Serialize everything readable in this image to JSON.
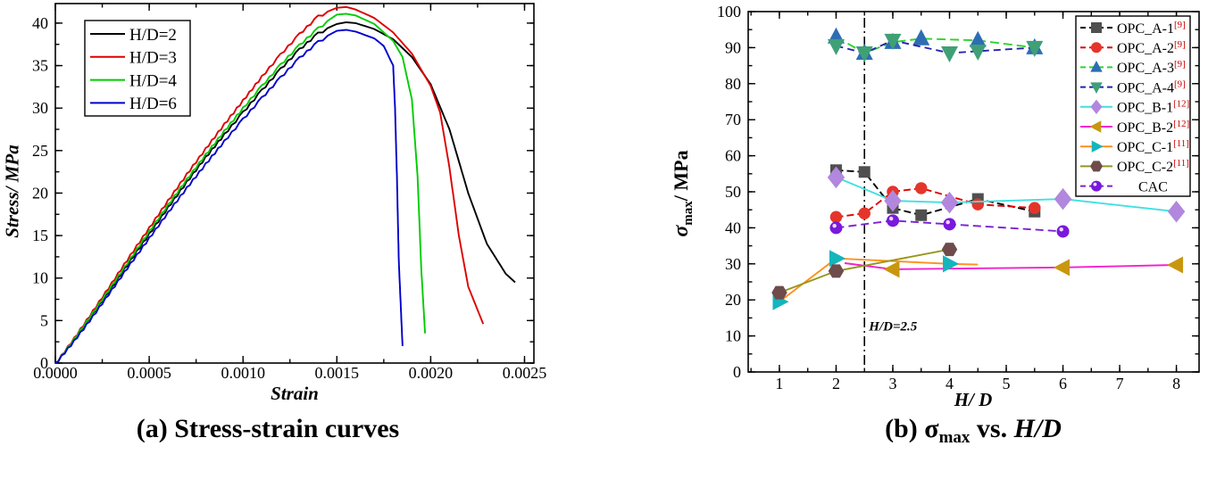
{
  "captions": {
    "a": "(a) Stress-strain curves",
    "b_prefix": "(b) ",
    "b_sigma": "σ",
    "b_sub": "max",
    "b_mid": " vs. ",
    "b_italic": "H/D"
  },
  "chart_data": [
    {
      "id": "stress-strain",
      "type": "line",
      "xlabel": "Strain",
      "ylabel": "Stress/ MPa",
      "xlim": [
        0,
        0.00255
      ],
      "ylim": [
        0,
        42.3
      ],
      "xticks": [
        0.0,
        0.0005,
        0.001,
        0.0015,
        0.002,
        0.0025
      ],
      "xtick_labels": [
        "0.0000",
        "0.0005",
        "0.0010",
        "0.0015",
        "0.0020",
        "0.0025"
      ],
      "x_minor_step": 0.00025,
      "yticks": [
        0,
        5,
        10,
        15,
        20,
        25,
        30,
        35,
        40
      ],
      "y_minor_step": 2.5,
      "grid": false,
      "legend_position": "top-left",
      "series": [
        {
          "name": "H/D=2",
          "color": "#000000",
          "ripple": true,
          "x": [
            0,
            0.0001,
            0.0002,
            0.0003,
            0.0004,
            0.0005,
            0.0006,
            0.0007,
            0.0008,
            0.0009,
            0.001,
            0.0011,
            0.0012,
            0.0013,
            0.0014,
            0.0015,
            0.00155,
            0.0016,
            0.0017,
            0.0018,
            0.0019,
            0.002,
            0.0021,
            0.0022,
            0.0023,
            0.0024,
            0.00245
          ],
          "y": [
            0,
            2.9,
            5.9,
            9.0,
            12.2,
            15.3,
            18.4,
            21.4,
            24.3,
            27.0,
            29.6,
            32.2,
            34.7,
            37.0,
            38.9,
            39.9,
            40.1,
            40.0,
            39.3,
            38.1,
            36.0,
            32.8,
            27.5,
            20.0,
            14.0,
            10.5,
            9.5
          ]
        },
        {
          "name": "H/D=3",
          "color": "#dd0000",
          "ripple": true,
          "x": [
            0,
            0.0001,
            0.0002,
            0.0003,
            0.0004,
            0.0005,
            0.0006,
            0.0007,
            0.0008,
            0.0009,
            0.001,
            0.0011,
            0.0012,
            0.0013,
            0.0014,
            0.0015,
            0.00155,
            0.0016,
            0.0017,
            0.0018,
            0.0019,
            0.002,
            0.00205,
            0.0021,
            0.00215,
            0.0022,
            0.00228
          ],
          "y": [
            0,
            3.0,
            6.2,
            9.5,
            12.8,
            16.0,
            19.2,
            22.3,
            25.3,
            28.2,
            31.0,
            33.8,
            36.4,
            38.8,
            40.9,
            41.8,
            41.9,
            41.6,
            40.6,
            38.9,
            36.4,
            32.6,
            29.5,
            23.0,
            15.0,
            9.0,
            4.6
          ]
        },
        {
          "name": "H/D=4",
          "color": "#00cc00",
          "ripple": true,
          "x": [
            0,
            0.0001,
            0.0002,
            0.0003,
            0.0004,
            0.0005,
            0.0006,
            0.0007,
            0.0008,
            0.0009,
            0.001,
            0.0011,
            0.0012,
            0.0013,
            0.0014,
            0.0015,
            0.00155,
            0.0016,
            0.0017,
            0.0018,
            0.00185,
            0.0019,
            0.00193,
            0.00195,
            0.00197
          ],
          "y": [
            0,
            2.9,
            6.0,
            9.2,
            12.4,
            15.6,
            18.7,
            21.7,
            24.6,
            27.4,
            30.1,
            32.7,
            35.2,
            37.5,
            39.5,
            41.0,
            41.1,
            40.9,
            39.9,
            37.9,
            36.0,
            31.0,
            22.0,
            11.0,
            3.5
          ]
        },
        {
          "name": "H/D=6",
          "color": "#0000cc",
          "ripple": true,
          "x": [
            0,
            0.0001,
            0.0002,
            0.0003,
            0.0004,
            0.0005,
            0.0006,
            0.0007,
            0.0008,
            0.0009,
            0.001,
            0.0011,
            0.0012,
            0.0013,
            0.0014,
            0.0015,
            0.00155,
            0.0016,
            0.0017,
            0.00175,
            0.0018,
            0.00181,
            0.00182,
            0.00183,
            0.00185
          ],
          "y": [
            0,
            2.7,
            5.6,
            8.7,
            11.8,
            14.8,
            17.8,
            20.7,
            23.5,
            26.2,
            28.8,
            31.3,
            33.7,
            36.0,
            37.9,
            39.1,
            39.2,
            39.0,
            38.2,
            37.3,
            35.0,
            30.0,
            22.0,
            12.0,
            2.0
          ]
        }
      ]
    },
    {
      "id": "sigma-max-vs-hd",
      "type": "scatter-line",
      "xlabel": "H/ D",
      "ylabel_sigma": "σ",
      "ylabel_sub": "max",
      "ylabel_rest": "/ MPa",
      "xlim": [
        0.45,
        8.4
      ],
      "ylim": [
        0,
        100
      ],
      "xticks": [
        1,
        2,
        3,
        4,
        5,
        6,
        7,
        8
      ],
      "x_minor_step": 0.5,
      "yticks": [
        0,
        10,
        20,
        30,
        40,
        50,
        60,
        70,
        80,
        90,
        100
      ],
      "y_minor_step": 5,
      "grid": false,
      "legend_position": "top-right",
      "vline": {
        "x": 2.5,
        "label": "H/D=2.5",
        "label_x": 2.58,
        "label_y": 11.5
      },
      "series": [
        {
          "name": "OPC_A-1",
          "ref": "[9]",
          "marker": "square",
          "marker_color": "#4f4f4f",
          "line_color": "#000000",
          "dash": "8,4",
          "x": [
            2,
            2.5,
            3,
            3.5,
            4.5,
            5.5
          ],
          "y": [
            56,
            55.5,
            45.5,
            43.5,
            48,
            44.5
          ]
        },
        {
          "name": "OPC_A-2",
          "ref": "[9]",
          "marker": "circle",
          "marker_color": "#e5352b",
          "line_color": "#e00000",
          "dash": "8,4",
          "x": [
            2,
            2.5,
            3,
            3.5,
            4.5,
            5.5
          ],
          "y": [
            43,
            44,
            50,
            51,
            46.5,
            45.5
          ]
        },
        {
          "name": "OPC_A-3",
          "ref": "[9]",
          "marker": "triangle-up",
          "marker_color": "#2e6db4",
          "line_color": "#2ed32e",
          "dash": "10,5",
          "x": [
            2,
            2.5,
            3,
            3.5,
            4.5,
            5.5
          ],
          "y": [
            93,
            88.5,
            91.5,
            92.5,
            92,
            90
          ]
        },
        {
          "name": "OPC_A-4",
          "ref": "[9]",
          "marker": "triangle-down",
          "marker_color": "#3fa076",
          "line_color": "#2525b0",
          "dash": "8,5",
          "x": [
            2,
            2.5,
            3,
            4,
            4.5,
            5.5
          ],
          "y": [
            90.5,
            88.5,
            92,
            88.5,
            89,
            90
          ]
        },
        {
          "name": "OPC_B-1",
          "ref": "[12]",
          "marker": "diamond",
          "marker_color": "#b287de",
          "line_color": "#3fe0e0",
          "dash": null,
          "x": [
            2,
            3,
            4,
            6,
            8
          ],
          "y": [
            54,
            47.5,
            47,
            48,
            44.5
          ]
        },
        {
          "name": "OPC_B-2",
          "ref": "[12]",
          "marker": "triangle-left",
          "marker_color": "#c8970d",
          "line_color": "#f320cf",
          "dash": null,
          "line_pre": [
            [
              2.15,
              30.2
            ]
          ],
          "x": [
            3,
            6,
            8
          ],
          "y": [
            28.5,
            29,
            29.7
          ]
        },
        {
          "name": "OPC_C-1",
          "ref": "[11]",
          "marker": "triangle-right",
          "marker_color": "#14b5bb",
          "line_color": "#ff8f1c",
          "dash": null,
          "line_post": [
            [
              4.5,
              29.8
            ]
          ],
          "x": [
            1,
            2,
            4
          ],
          "y": [
            19.5,
            31.5,
            30
          ]
        },
        {
          "name": "OPC_C-2",
          "ref": "[11]",
          "marker": "hexagon",
          "marker_color": "#6f4b4b",
          "line_color": "#96961c",
          "dash": null,
          "x": [
            1,
            2,
            4
          ],
          "y": [
            22,
            28,
            34
          ]
        },
        {
          "name": "CAC",
          "ref": "",
          "legend_center": true,
          "marker": "sphere",
          "marker_color": "#7a18dc",
          "line_color": "#7d22d4",
          "dash": "9,5",
          "x": [
            2,
            3,
            4,
            6
          ],
          "y": [
            40,
            42,
            41,
            39
          ]
        }
      ],
      "ref_color": "#cc0000"
    }
  ]
}
